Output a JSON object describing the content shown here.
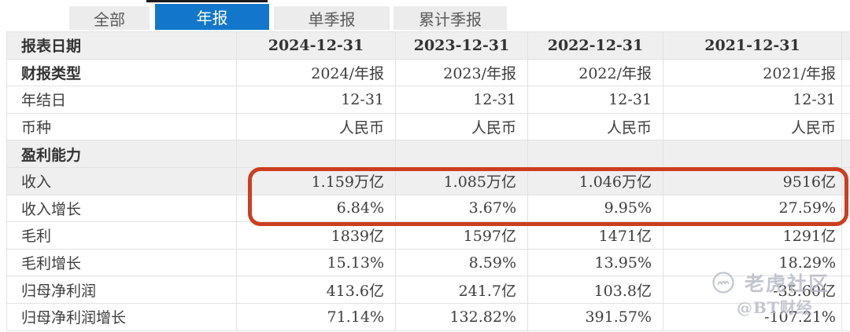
{
  "tabs": [
    {
      "label": "全部",
      "active": false
    },
    {
      "label": "年报",
      "active": true
    },
    {
      "label": "单季报",
      "active": false
    },
    {
      "label": "累计季报",
      "active": false
    }
  ],
  "table": {
    "header_row": {
      "label": "报表日期",
      "values": [
        "2024-12-31",
        "2023-12-31",
        "2022-12-31",
        "2021-12-31"
      ]
    },
    "rows": [
      {
        "type": "bold",
        "label": "财报类型",
        "values": [
          "2024/年报",
          "2023/年报",
          "2022/年报",
          "2021/年报"
        ]
      },
      {
        "type": "normal",
        "label": "年结日",
        "values": [
          "12-31",
          "12-31",
          "12-31",
          "12-31"
        ]
      },
      {
        "type": "normal",
        "label": "币种",
        "values": [
          "人民币",
          "人民币",
          "人民币",
          "人民币"
        ]
      },
      {
        "type": "section",
        "label": "盈利能力"
      },
      {
        "type": "shaded",
        "label": "收入",
        "values": [
          "1.159万亿",
          "1.085万亿",
          "1.046万亿",
          "9516亿"
        ]
      },
      {
        "type": "normal",
        "label": "收入增长",
        "values": [
          "6.84%",
          "3.67%",
          "9.95%",
          "27.59%"
        ]
      },
      {
        "type": "normal",
        "label": "毛利",
        "values": [
          "1839亿",
          "1597亿",
          "1471亿",
          "1291亿"
        ]
      },
      {
        "type": "normal",
        "label": "毛利增长",
        "values": [
          "15.13%",
          "8.59%",
          "13.95%",
          "18.29%"
        ]
      },
      {
        "type": "normal",
        "label": "归母净利润",
        "values": [
          "413.6亿",
          "241.7亿",
          "103.8亿",
          "-35.60亿"
        ]
      },
      {
        "type": "normal",
        "label": "归母净利润增长",
        "values": [
          "71.14%",
          "132.82%",
          "391.57%",
          "-107.21%"
        ]
      }
    ]
  },
  "annotation": {
    "shape": "rounded-rectangle",
    "rows_highlighted": [
      "收入",
      "收入增长"
    ],
    "color": "#cc3e20"
  },
  "watermark": {
    "community": "老虎社区",
    "handle": "@BT财经"
  },
  "colors": {
    "active_tab": "#1277cb",
    "row_shade": "#efefef",
    "annotation": "#cc3e20"
  }
}
